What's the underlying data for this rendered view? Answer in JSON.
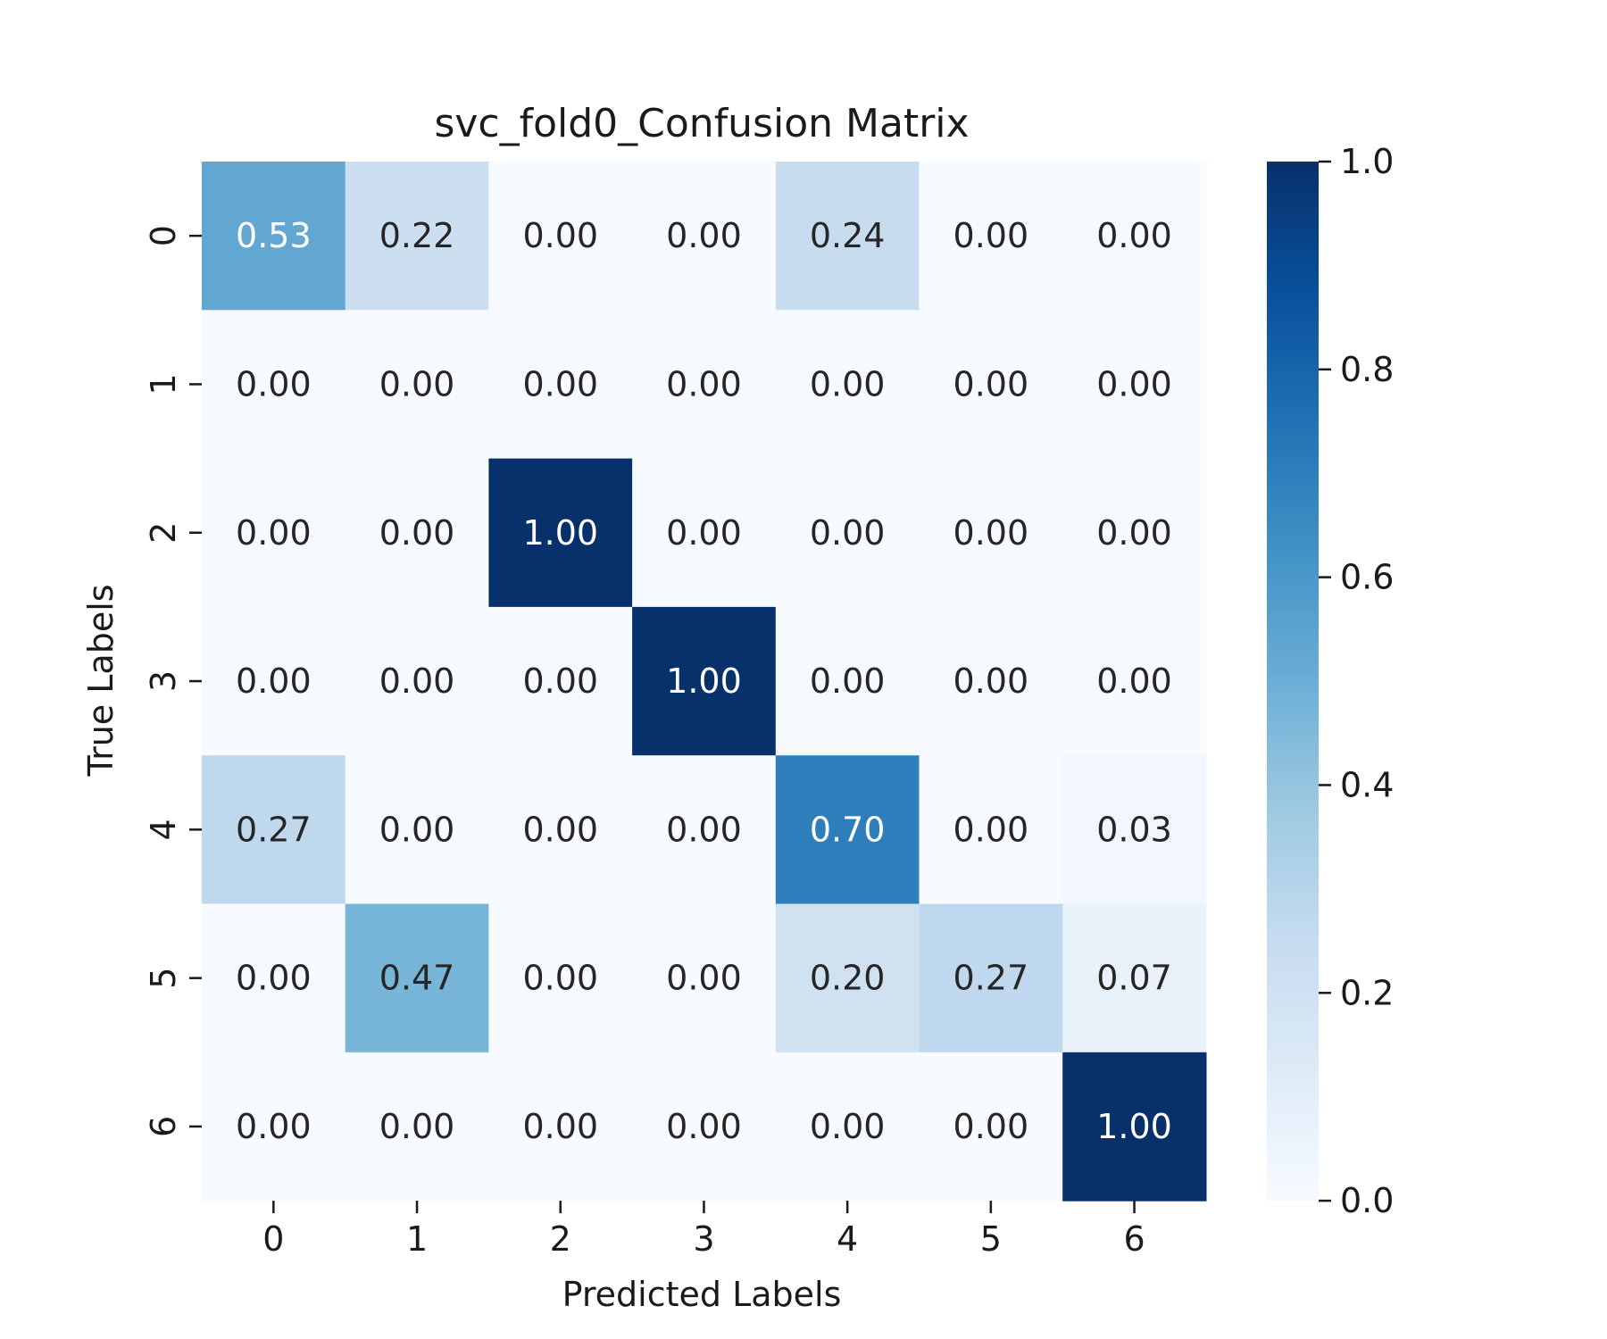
{
  "chart_data": {
    "type": "heatmap",
    "title": "svc_fold0_Confusion Matrix",
    "xlabel": "Predicted Labels",
    "ylabel": "True Labels",
    "x_categories": [
      "0",
      "1",
      "2",
      "3",
      "4",
      "5",
      "6"
    ],
    "y_categories": [
      "0",
      "1",
      "2",
      "3",
      "4",
      "5",
      "6"
    ],
    "values": [
      [
        0.53,
        0.22,
        0.0,
        0.0,
        0.24,
        0.0,
        0.0
      ],
      [
        0.0,
        0.0,
        0.0,
        0.0,
        0.0,
        0.0,
        0.0
      ],
      [
        0.0,
        0.0,
        1.0,
        0.0,
        0.0,
        0.0,
        0.0
      ],
      [
        0.0,
        0.0,
        0.0,
        1.0,
        0.0,
        0.0,
        0.0
      ],
      [
        0.27,
        0.0,
        0.0,
        0.0,
        0.7,
        0.0,
        0.03
      ],
      [
        0.0,
        0.47,
        0.0,
        0.0,
        0.2,
        0.27,
        0.07
      ],
      [
        0.0,
        0.0,
        0.0,
        0.0,
        0.0,
        0.0,
        1.0
      ]
    ],
    "value_format": "0.00",
    "colormap": "Blues",
    "colorbar": {
      "range": [
        0.0,
        1.0
      ],
      "ticks": [
        "0.0",
        "0.2",
        "0.4",
        "0.6",
        "0.8",
        "1.0"
      ]
    },
    "grid": false,
    "legend": "colorbar-right"
  }
}
